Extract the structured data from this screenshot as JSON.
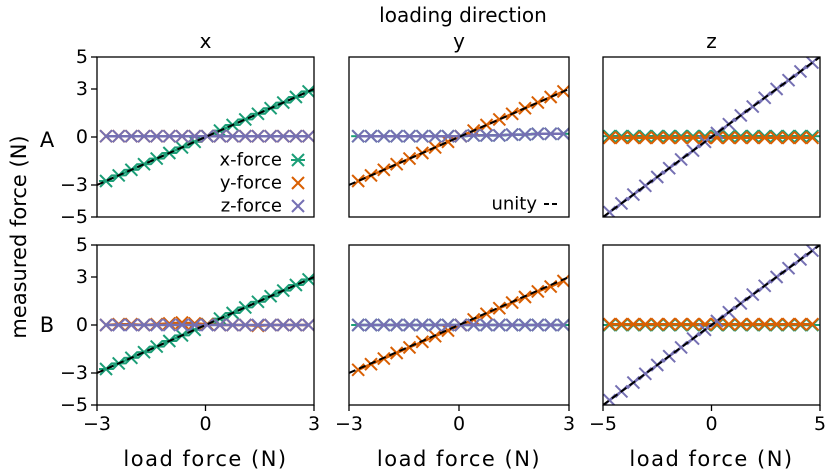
{
  "figure": {
    "suptitle": "loading direction",
    "ylabel": "measured force (N)",
    "row_labels": [
      "A",
      "B"
    ]
  },
  "legend": {
    "entries": [
      {
        "label": "x-force",
        "color": "#1b9e77"
      },
      {
        "label": "y-force",
        "color": "#d95f02"
      },
      {
        "label": "z-force",
        "color": "#7570b3"
      }
    ],
    "unity_label": "unity"
  },
  "colors": {
    "x": "#1b9e77",
    "y": "#d95f02",
    "z": "#7570b3",
    "unity": "#000000"
  },
  "chart_data": [
    {
      "type": "line",
      "row": "A",
      "title": "x",
      "xlabel": "",
      "xlim": [
        -3,
        3
      ],
      "ylim": [
        -5,
        5
      ],
      "yticks": [
        -5,
        -3,
        0,
        3,
        5
      ],
      "xticks": [],
      "x": [
        -2.75,
        -2.4,
        -2.05,
        -1.7,
        -1.35,
        -1.0,
        -0.65,
        -0.3,
        0.05,
        0.4,
        0.75,
        1.1,
        1.45,
        1.8,
        2.15,
        2.5,
        2.85
      ],
      "series": [
        {
          "name": "x-force",
          "marker": "asterisk",
          "values": [
            -2.75,
            -2.4,
            -2.05,
            -1.7,
            -1.35,
            -1.0,
            -0.65,
            -0.3,
            0.05,
            0.4,
            0.75,
            1.1,
            1.45,
            1.8,
            2.15,
            2.5,
            2.85
          ]
        },
        {
          "name": "y-force",
          "marker": "x",
          "values": [
            0.05,
            0.05,
            0.05,
            0.05,
            0.05,
            0.05,
            0.05,
            0.05,
            0.05,
            0.05,
            0.05,
            0.05,
            0.05,
            0.05,
            0.05,
            0.05,
            0.05
          ]
        },
        {
          "name": "z-force",
          "marker": "x",
          "values": [
            0.05,
            0.05,
            0.05,
            0.05,
            0.05,
            0.05,
            0.05,
            0.05,
            0.05,
            0.05,
            0.05,
            0.05,
            0.05,
            0.05,
            0.05,
            0.05,
            0.05
          ]
        }
      ]
    },
    {
      "type": "line",
      "row": "A",
      "title": "y",
      "xlabel": "",
      "xlim": [
        -3,
        3
      ],
      "ylim": [
        -5,
        5
      ],
      "yticks": [],
      "xticks": [],
      "x": [
        -2.75,
        -2.4,
        -2.05,
        -1.7,
        -1.35,
        -1.0,
        -0.65,
        -0.3,
        0.05,
        0.4,
        0.75,
        1.1,
        1.45,
        1.8,
        2.15,
        2.5,
        2.85
      ],
      "series": [
        {
          "name": "x-force",
          "marker": "asterisk",
          "values": [
            0.05,
            0.05,
            0.05,
            0.05,
            0.05,
            0.05,
            0.05,
            0.05,
            0.05,
            0.1,
            0.1,
            0.1,
            0.15,
            0.15,
            0.2,
            0.2,
            0.2
          ]
        },
        {
          "name": "y-force",
          "marker": "x",
          "values": [
            -2.75,
            -2.4,
            -2.05,
            -1.7,
            -1.35,
            -1.0,
            -0.65,
            -0.3,
            0.05,
            0.4,
            0.75,
            1.1,
            1.45,
            1.8,
            2.15,
            2.5,
            2.85
          ]
        },
        {
          "name": "z-force",
          "marker": "x",
          "values": [
            0.05,
            0.05,
            0.05,
            0.05,
            0.05,
            0.05,
            0.05,
            0.05,
            0.05,
            0.1,
            0.1,
            0.1,
            0.15,
            0.15,
            0.2,
            0.2,
            0.2
          ]
        }
      ]
    },
    {
      "type": "line",
      "row": "A",
      "title": "z",
      "xlabel": "",
      "xlim": [
        -5,
        5
      ],
      "ylim": [
        -5,
        5
      ],
      "yticks": [],
      "xticks": [],
      "x": [
        -4.7,
        -4.15,
        -3.6,
        -3.05,
        -2.5,
        -1.95,
        -1.4,
        -0.85,
        -0.3,
        0.25,
        0.8,
        1.35,
        1.9,
        2.45,
        3.0,
        3.55,
        4.1,
        4.65
      ],
      "series": [
        {
          "name": "x-force",
          "marker": "asterisk",
          "values": [
            0.05,
            0.05,
            0.05,
            0.05,
            0.05,
            0.05,
            0.05,
            0.05,
            0.05,
            0.05,
            0.05,
            0.05,
            0.05,
            0.05,
            0.05,
            0.05,
            0.05,
            0.05
          ]
        },
        {
          "name": "y-force",
          "marker": "x",
          "values": [
            -0.05,
            -0.05,
            -0.05,
            -0.05,
            -0.05,
            -0.05,
            -0.05,
            -0.05,
            -0.05,
            -0.05,
            -0.05,
            -0.05,
            -0.05,
            -0.05,
            -0.05,
            -0.05,
            -0.05,
            -0.05
          ]
        },
        {
          "name": "z-force",
          "marker": "x",
          "values": [
            -4.7,
            -4.15,
            -3.6,
            -3.05,
            -2.5,
            -1.95,
            -1.4,
            -0.85,
            -0.3,
            0.25,
            0.8,
            1.35,
            1.9,
            2.45,
            3.0,
            3.55,
            4.1,
            4.65
          ]
        }
      ]
    },
    {
      "type": "line",
      "row": "B",
      "title": "",
      "xlabel": "load force (N)",
      "xlim": [
        -3,
        3
      ],
      "ylim": [
        -5,
        5
      ],
      "yticks": [
        -5,
        -3,
        0,
        3,
        5
      ],
      "xticks": [
        -3,
        0,
        3
      ],
      "x": [
        -2.75,
        -2.4,
        -2.05,
        -1.7,
        -1.35,
        -1.0,
        -0.65,
        -0.3,
        0.05,
        0.4,
        0.75,
        1.1,
        1.45,
        1.8,
        2.15,
        2.5,
        2.85
      ],
      "series": [
        {
          "name": "x-force",
          "marker": "asterisk",
          "values": [
            -2.75,
            -2.4,
            -2.05,
            -1.7,
            -1.35,
            -1.0,
            -0.65,
            -0.3,
            0.05,
            0.4,
            0.75,
            1.1,
            1.45,
            1.8,
            2.15,
            2.5,
            2.85
          ]
        },
        {
          "name": "y-force",
          "marker": "x",
          "values": [
            0.0,
            0.05,
            0.05,
            0.0,
            0.05,
            0.1,
            0.15,
            0.1,
            0.05,
            0.0,
            0.0,
            0.0,
            -0.05,
            0.0,
            0.0,
            0.0,
            0.0
          ]
        },
        {
          "name": "z-force",
          "marker": "x",
          "values": [
            0.0,
            0.0,
            0.0,
            0.0,
            0.0,
            0.0,
            0.0,
            0.0,
            0.0,
            0.0,
            0.0,
            0.0,
            0.0,
            0.0,
            0.0,
            0.0,
            0.0
          ]
        }
      ]
    },
    {
      "type": "line",
      "row": "B",
      "title": "",
      "xlabel": "load force (N)",
      "xlim": [
        -3,
        3
      ],
      "ylim": [
        -5,
        5
      ],
      "yticks": [],
      "xticks": [
        -3,
        0,
        3
      ],
      "x": [
        -2.75,
        -2.4,
        -2.05,
        -1.7,
        -1.35,
        -1.0,
        -0.65,
        -0.3,
        0.05,
        0.4,
        0.75,
        1.1,
        1.45,
        1.8,
        2.15,
        2.5,
        2.85
      ],
      "series": [
        {
          "name": "x-force",
          "marker": "asterisk",
          "values": [
            0.0,
            0.0,
            0.0,
            0.0,
            0.0,
            0.0,
            0.0,
            0.0,
            0.0,
            0.0,
            0.0,
            0.0,
            0.0,
            0.0,
            0.0,
            0.0,
            0.0
          ]
        },
        {
          "name": "y-force",
          "marker": "x",
          "values": [
            -2.8,
            -2.45,
            -2.1,
            -1.75,
            -1.4,
            -1.05,
            -0.7,
            -0.35,
            0.0,
            0.35,
            0.7,
            1.05,
            1.4,
            1.75,
            2.1,
            2.4,
            2.75
          ]
        },
        {
          "name": "z-force",
          "marker": "x",
          "values": [
            0.0,
            0.0,
            0.0,
            0.0,
            0.0,
            0.0,
            0.0,
            0.0,
            0.0,
            0.0,
            0.0,
            0.0,
            0.0,
            0.0,
            0.0,
            0.0,
            0.0
          ]
        }
      ]
    },
    {
      "type": "line",
      "row": "B",
      "title": "",
      "xlabel": "load force (N)",
      "xlim": [
        -5,
        5
      ],
      "ylim": [
        -5,
        5
      ],
      "yticks": [],
      "xticks": [
        -5,
        0,
        5
      ],
      "x": [
        -4.7,
        -4.15,
        -3.6,
        -3.05,
        -2.5,
        -1.95,
        -1.4,
        -0.85,
        -0.3,
        0.25,
        0.8,
        1.35,
        1.9,
        2.45,
        3.0,
        3.55,
        4.1,
        4.65
      ],
      "series": [
        {
          "name": "x-force",
          "marker": "asterisk",
          "values": [
            0.0,
            0.0,
            0.0,
            0.0,
            0.0,
            0.0,
            0.0,
            0.0,
            0.0,
            0.0,
            0.0,
            0.0,
            0.0,
            0.0,
            0.0,
            0.0,
            0.0,
            0.0
          ]
        },
        {
          "name": "y-force",
          "marker": "x",
          "values": [
            0.05,
            0.05,
            0.05,
            0.05,
            0.05,
            0.05,
            0.05,
            0.05,
            0.05,
            0.05,
            0.05,
            0.05,
            0.05,
            0.05,
            0.05,
            0.05,
            0.05,
            0.05
          ]
        },
        {
          "name": "z-force",
          "marker": "x",
          "values": [
            -4.7,
            -4.15,
            -3.6,
            -3.05,
            -2.5,
            -1.95,
            -1.4,
            -0.85,
            -0.3,
            0.25,
            0.8,
            1.35,
            1.9,
            2.45,
            3.0,
            3.55,
            4.1,
            4.65
          ]
        }
      ]
    }
  ]
}
